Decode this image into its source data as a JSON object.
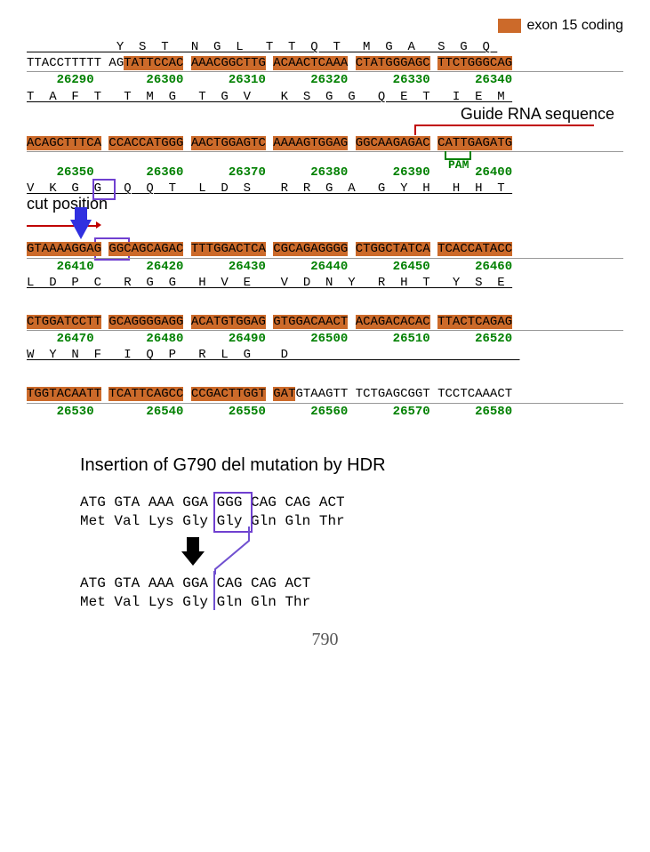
{
  "legend": {
    "color": "#cc6a2a",
    "label": "exon 15 coding"
  },
  "exon_color": "#cc6a2a",
  "pos_color": "#008000",
  "guide_color": "#c00000",
  "purple": "#7040d0",
  "blue": "#3030e0",
  "blocks": [
    {
      "aa_top": "            Y  S  T   N  G  L   T  T  Q  T   M  G  A   S  G  Q ",
      "nt": [
        {
          "t": "TTACCTTTTT AG",
          "exon": false
        },
        {
          "t": "TATTCCAC",
          "exon": true
        },
        {
          "t": " ",
          "exon": false
        },
        {
          "t": "AAACGGCTTG",
          "exon": true
        },
        {
          "t": " ",
          "exon": false
        },
        {
          "t": "ACAACTCAAA",
          "exon": true
        },
        {
          "t": " ",
          "exon": false
        },
        {
          "t": "CTATGGGAGC",
          "exon": true
        },
        {
          "t": " ",
          "exon": false
        },
        {
          "t": "TTCTGGGCAG",
          "exon": true
        }
      ],
      "pos": "    26290       26300      26310      26320      26330      26340",
      "aa_bot": "T  A  F  T   T  M  G   T  G  V    K  S  G  G   Q  E  T   I  E  M "
    },
    {
      "aa_top": "",
      "guide_label": "Guide RNA sequence",
      "nt": [
        {
          "t": "ACAGCTTTCA",
          "exon": true
        },
        {
          "t": " ",
          "exon": false
        },
        {
          "t": "CCACCATGGG",
          "exon": true
        },
        {
          "t": " ",
          "exon": false
        },
        {
          "t": "AACTGGAGTC",
          "exon": true
        },
        {
          "t": " ",
          "exon": false
        },
        {
          "t": "AAAAGTGGAG",
          "exon": true
        },
        {
          "t": " ",
          "exon": false
        },
        {
          "t": "GGCAAGAGAC",
          "exon": true
        },
        {
          "t": " ",
          "exon": false
        },
        {
          "t": "CATTGAGATG",
          "exon": true
        }
      ],
      "pam_label": "PAM",
      "pos": "    26350       26360      26370      26380      26390      26400",
      "aa_bot": "V  K  G  G   Q  Q  T   L  D  S    R  R  G  A   G  Y  H   H  H  T "
    },
    {
      "cut_label": "cut position",
      "nt": [
        {
          "t": "GTAAAAGGAG",
          "exon": true
        },
        {
          "t": " ",
          "exon": false
        },
        {
          "t": "GG",
          "exon": true
        },
        {
          "t": "CAGCAGAC",
          "exon": true
        },
        {
          "t": " ",
          "exon": false
        },
        {
          "t": "TTTGGACTCA",
          "exon": true
        },
        {
          "t": " ",
          "exon": false
        },
        {
          "t": "CGCAGAGGGG",
          "exon": true
        },
        {
          "t": " ",
          "exon": false
        },
        {
          "t": "CTGGCTATCA",
          "exon": true
        },
        {
          "t": " ",
          "exon": false
        },
        {
          "t": "TCACCATACC",
          "exon": true
        }
      ],
      "pos": "    26410       26420      26430      26440      26450      26460",
      "aa_bot": "L  D  P  C   R  G  G   H  V  E    V  D  N  Y   R  H  T   Y  S  E "
    },
    {
      "nt": [
        {
          "t": "CTGGATCCTT",
          "exon": true
        },
        {
          "t": " ",
          "exon": false
        },
        {
          "t": "GCAGGGGAGG",
          "exon": true
        },
        {
          "t": " ",
          "exon": false
        },
        {
          "t": "ACATGTGGAG",
          "exon": true
        },
        {
          "t": " ",
          "exon": false
        },
        {
          "t": "GTGGACAACT",
          "exon": true
        },
        {
          "t": " ",
          "exon": false
        },
        {
          "t": "ACAGACACAC",
          "exon": true
        },
        {
          "t": " ",
          "exon": false
        },
        {
          "t": "TTACTCAGAG",
          "exon": true
        }
      ],
      "pos": "    26470       26480      26490      26500      26510      26520",
      "aa_bot": "W  Y  N  F   I  Q  P   R  L  G    D                               "
    },
    {
      "nt": [
        {
          "t": "TGGTACAATT",
          "exon": true
        },
        {
          "t": " ",
          "exon": false
        },
        {
          "t": "TCATTCAGCC",
          "exon": true
        },
        {
          "t": " ",
          "exon": false
        },
        {
          "t": "CCGACTTGGT",
          "exon": true
        },
        {
          "t": " ",
          "exon": false
        },
        {
          "t": "GAT",
          "exon": true
        },
        {
          "t": "GTAAGTT TCTGAGCGGT TCCTCAAACT",
          "exon": false
        }
      ],
      "pos": "    26530       26540      26550      26560      26570      26580"
    }
  ],
  "hdr": {
    "title": "Insertion of G790 del mutation by HDR",
    "before_nt": "ATG GTA AAA GGA GGG CAG CAG ACT",
    "before_aa": "Met Val Lys Gly Gly Gln Gln Thr",
    "after_nt": "ATG GTA AAA GGA CAG CAG ACT",
    "after_aa": "Met Val Lys Gly Gln Gln Thr"
  },
  "page_number": "790"
}
